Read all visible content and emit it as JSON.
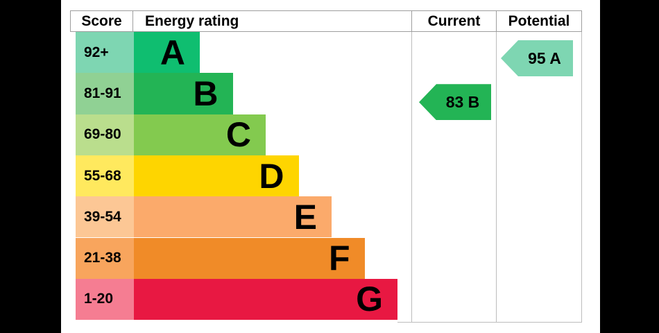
{
  "header": {
    "score": "Score",
    "energy_rating": "Energy rating",
    "current": "Current",
    "potential": "Potential"
  },
  "bands": [
    {
      "letter": "A",
      "score_range": "92+",
      "bar_color": "#0fbe70",
      "score_color": "#7ed6b2"
    },
    {
      "letter": "B",
      "score_range": "81-91",
      "bar_color": "#23b455",
      "score_color": "#90d194"
    },
    {
      "letter": "C",
      "score_range": "69-80",
      "bar_color": "#83ca4f",
      "score_color": "#bade8d"
    },
    {
      "letter": "D",
      "score_range": "55-68",
      "bar_color": "#fed500",
      "score_color": "#ffe95e"
    },
    {
      "letter": "E",
      "score_range": "39-54",
      "bar_color": "#fbaa6b",
      "score_color": "#fcc795"
    },
    {
      "letter": "F",
      "score_range": "21-38",
      "bar_color": "#f08b28",
      "score_color": "#f8a55d"
    },
    {
      "letter": "G",
      "score_range": "1-20",
      "bar_color": "#e81842",
      "score_color": "#f57d92"
    }
  ],
  "current": {
    "label": "83 B",
    "value": 83,
    "band": "B",
    "color": "#23b455"
  },
  "potential": {
    "label": "95 A",
    "value": 95,
    "band": "A",
    "color": "#7ed6b2"
  },
  "chart_data": {
    "type": "bar",
    "title": "EPC energy efficiency rating chart",
    "columns": [
      "Score",
      "Energy rating",
      "Current",
      "Potential"
    ],
    "categories": [
      "A",
      "B",
      "C",
      "D",
      "E",
      "F",
      "G"
    ],
    "score_ranges": [
      "92+",
      "81-91",
      "69-80",
      "55-68",
      "39-54",
      "21-38",
      "1-20"
    ],
    "bar_lengths_relative": [
      1,
      1.5,
      2,
      2.5,
      3,
      3.5,
      4
    ],
    "band_colors": [
      "#0fbe70",
      "#23b455",
      "#83ca4f",
      "#fed500",
      "#fbaa6b",
      "#f08b28",
      "#e81842"
    ],
    "score_cell_colors": [
      "#7ed6b2",
      "#90d194",
      "#bade8d",
      "#ffe95e",
      "#fcc795",
      "#f8a55d",
      "#f57d92"
    ],
    "current_rating": {
      "value": 83,
      "band": "B"
    },
    "potential_rating": {
      "value": 95,
      "band": "A"
    },
    "legend_position": "none",
    "grid": false
  }
}
